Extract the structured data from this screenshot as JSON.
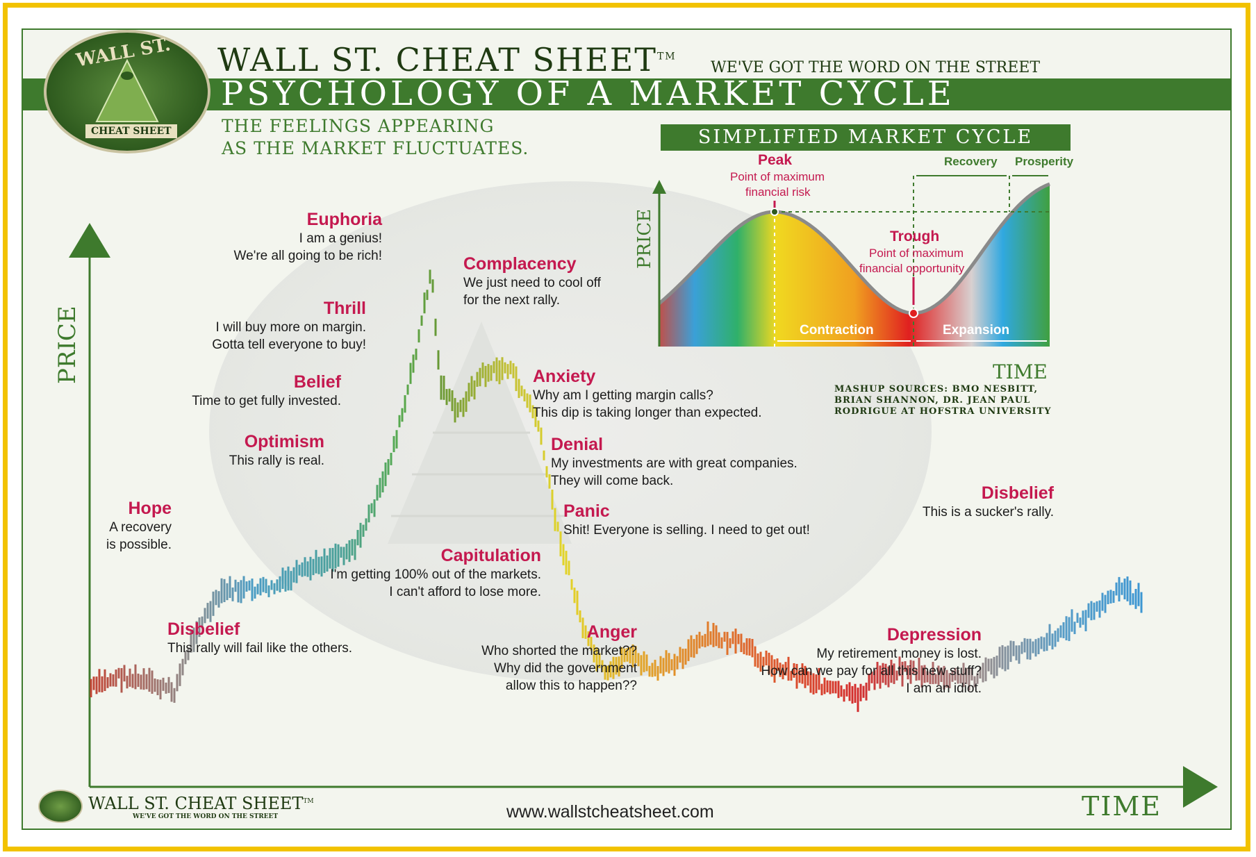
{
  "header": {
    "brand": "WALL ST. CHEAT SHEET",
    "trademark": "TM",
    "tagline": "WE'VE GOT THE WORD ON THE STREET",
    "title": "PSYCHOLOGY OF A MARKET CYCLE",
    "subtitle_line1": "THE FEELINGS APPEARING",
    "subtitle_line2": "AS THE MARKET FLUCTUATES."
  },
  "seal": {
    "text_top": "WALL ST.",
    "text_bottom": "CHEAT SHEET"
  },
  "main_chart": {
    "y_axis_label": "PRICE",
    "x_axis_label": "TIME",
    "stages": [
      {
        "key": "disbelief_1",
        "emotion": "Disbelief",
        "quote": [
          "This rally will fail like the others."
        ]
      },
      {
        "key": "hope",
        "emotion": "Hope",
        "quote": [
          "A recovery",
          "is possible."
        ]
      },
      {
        "key": "optimism",
        "emotion": "Optimism",
        "quote": [
          "This rally is real."
        ]
      },
      {
        "key": "belief",
        "emotion": "Belief",
        "quote": [
          "Time to get fully invested."
        ]
      },
      {
        "key": "thrill",
        "emotion": "Thrill",
        "quote": [
          "I will buy more on margin.",
          "Gotta tell everyone to buy!"
        ]
      },
      {
        "key": "euphoria",
        "emotion": "Euphoria",
        "quote": [
          "I am a genius!",
          "We're all going to be rich!"
        ]
      },
      {
        "key": "complacency",
        "emotion": "Complacency",
        "quote": [
          "We just need to cool off",
          "for the next rally."
        ]
      },
      {
        "key": "anxiety",
        "emotion": "Anxiety",
        "quote": [
          "Why am I getting margin calls?",
          "This dip is taking longer than expected."
        ]
      },
      {
        "key": "denial",
        "emotion": "Denial",
        "quote": [
          "My investments are with great companies.",
          "They will come back."
        ]
      },
      {
        "key": "panic",
        "emotion": "Panic",
        "quote": [
          "Shit! Everyone is selling. I need to get out!"
        ]
      },
      {
        "key": "capitulation",
        "emotion": "Capitulation",
        "quote": [
          "I'm getting 100% out of the markets.",
          "I can't afford to lose more."
        ]
      },
      {
        "key": "anger",
        "emotion": "Anger",
        "quote": [
          "Who shorted the market??",
          "Why did the government",
          "allow this to happen??"
        ]
      },
      {
        "key": "depression",
        "emotion": "Depression",
        "quote": [
          "My retirement money is lost.",
          "How can we pay for all this new stuff?",
          "I am an idiot."
        ]
      },
      {
        "key": "disbelief_2",
        "emotion": "Disbelief",
        "quote": [
          "This is a sucker's rally."
        ]
      }
    ]
  },
  "simplified_cycle": {
    "title": "SIMPLIFIED MARKET CYCLE",
    "y_axis_label": "PRICE",
    "x_axis_label": "TIME",
    "peak_title": "Peak",
    "peak_lines": [
      "Point of maximum",
      "financial risk"
    ],
    "trough_title": "Trough",
    "trough_lines": [
      "Point of maximum",
      "financial opportunity"
    ],
    "recovery": "Recovery",
    "prosperity": "Prosperity",
    "contraction": "Contraction",
    "expansion": "Expansion"
  },
  "sources": [
    "MASHUP SOURCES: BMO NESBITT,",
    "BRIAN SHANNON, DR. JEAN PAUL",
    "RODRIGUE AT HOFSTRA UNIVERSITY"
  ],
  "footer": {
    "brand": "WALL ST. CHEAT SHEET",
    "trademark": "TM",
    "tagline": "WE'VE GOT THE WORD ON THE STREET",
    "url": "www.wallstcheatsheet.com"
  },
  "colors": {
    "green": "#3e7a2d",
    "emotion": "#c4194f",
    "frame": "#f2c200"
  }
}
